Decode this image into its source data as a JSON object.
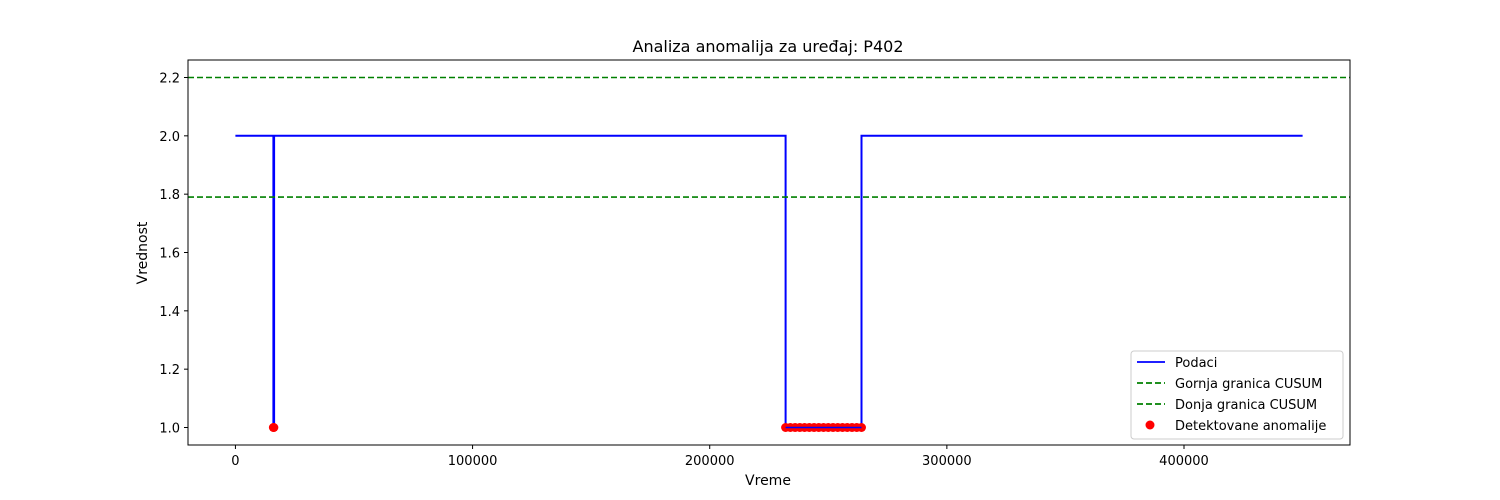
{
  "chart_data": {
    "type": "line",
    "title": "Analiza anomalija za uređaj: P402",
    "xlabel": "Vreme",
    "ylabel": "Vrednost",
    "xlim": [
      -20000,
      470000
    ],
    "ylim": [
      0.94,
      2.26
    ],
    "xticks": [
      0,
      100000,
      200000,
      300000,
      400000
    ],
    "xtick_labels": [
      "0",
      "100000",
      "200000",
      "300000",
      "400000"
    ],
    "yticks": [
      1.0,
      1.2,
      1.4,
      1.6,
      1.8,
      2.0,
      2.2
    ],
    "ytick_labels": [
      "1.0",
      "1.2",
      "1.4",
      "1.6",
      "1.8",
      "2.0",
      "2.2"
    ],
    "grid": false,
    "legend_position": "lower-right",
    "series": [
      {
        "name": "Podaci",
        "kind": "line",
        "color": "#0000ff",
        "x": [
          0,
          16000,
          16000,
          16300,
          16300,
          232000,
          232000,
          264000,
          264000,
          450000
        ],
        "y": [
          2.0,
          2.0,
          1.0,
          1.0,
          2.0,
          2.0,
          1.0,
          1.0,
          2.0,
          2.0
        ]
      },
      {
        "name": "Gornja granica CUSUM",
        "kind": "hline",
        "style": "dashed",
        "color": "#008000",
        "y": 2.2
      },
      {
        "name": "Donja granica CUSUM",
        "kind": "hline",
        "style": "dashed",
        "color": "#008000",
        "y": 1.79
      },
      {
        "name": "Detektovane anomalije",
        "kind": "scatter",
        "color": "#ff0000",
        "x": [
          16000,
          16200,
          232000,
          234000,
          236000,
          238000,
          240000,
          242000,
          244000,
          246000,
          248000,
          250000,
          252000,
          254000,
          256000,
          258000,
          260000,
          262000,
          264000
        ],
        "y": [
          1.0,
          1.0,
          1.0,
          1.0,
          1.0,
          1.0,
          1.0,
          1.0,
          1.0,
          1.0,
          1.0,
          1.0,
          1.0,
          1.0,
          1.0,
          1.0,
          1.0,
          1.0,
          1.0
        ]
      }
    ]
  }
}
